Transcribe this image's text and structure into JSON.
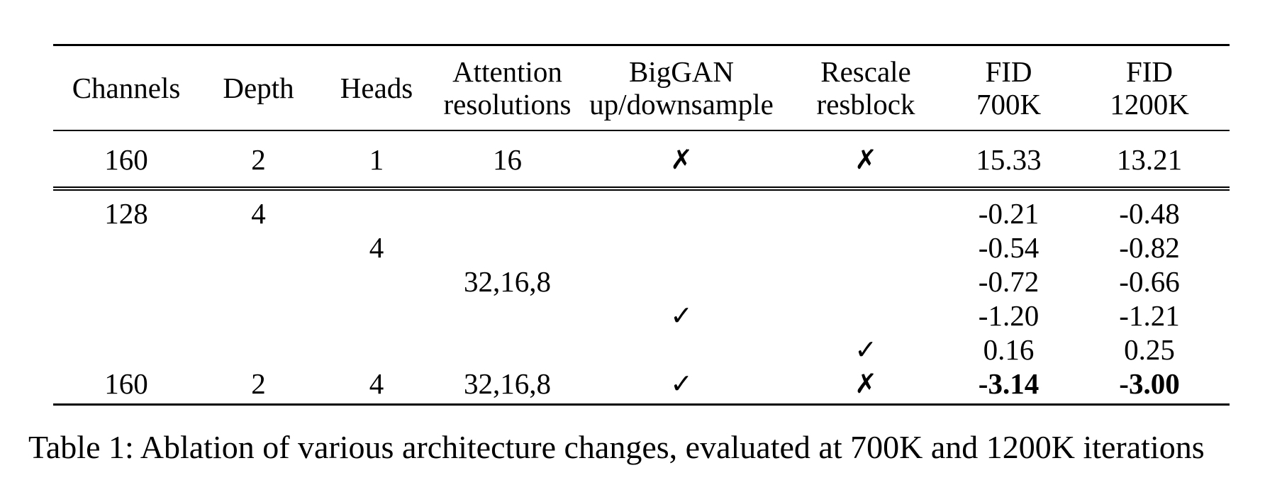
{
  "table": {
    "columns": [
      {
        "line1": "Channels",
        "line2": ""
      },
      {
        "line1": "Depth",
        "line2": ""
      },
      {
        "line1": "Heads",
        "line2": ""
      },
      {
        "line1": "Attention",
        "line2": "resolutions"
      },
      {
        "line1": "BigGAN",
        "line2": "up/downsample"
      },
      {
        "line1": "Rescale",
        "line2": "resblock"
      },
      {
        "line1": "FID",
        "line2": "700K"
      },
      {
        "line1": "FID",
        "line2": "1200K"
      }
    ],
    "baseline_row": [
      "160",
      "2",
      "1",
      "16",
      "✗",
      "✗",
      "15.33",
      "13.21"
    ],
    "ablation_rows": [
      [
        "128",
        "4",
        "",
        "",
        "",
        "",
        "-0.21",
        "-0.48"
      ],
      [
        "",
        "",
        "4",
        "",
        "",
        "",
        "-0.54",
        "-0.82"
      ],
      [
        "",
        "",
        "",
        "32,16,8",
        "",
        "",
        "-0.72",
        "-0.66"
      ],
      [
        "",
        "",
        "",
        "",
        "✓",
        "",
        "-1.20",
        "-1.21"
      ],
      [
        "",
        "",
        "",
        "",
        "",
        "✓",
        "0.16",
        "0.25"
      ],
      [
        "160",
        "2",
        "4",
        "32,16,8",
        "✓",
        "✗",
        "-3.14",
        "-3.00"
      ]
    ]
  },
  "caption": "Table 1: Ablation of various architecture changes, evaluated at 700K and 1200K iterations"
}
